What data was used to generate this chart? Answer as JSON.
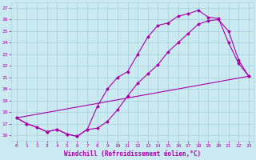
{
  "xlabel": "Windchill (Refroidissement éolien,°C)",
  "background_color": "#cbe9f0",
  "grid_color": "#aad4e0",
  "line_color": "#aa00aa",
  "xlim": [
    -0.5,
    23.5
  ],
  "ylim": [
    15.5,
    27.5
  ],
  "xticks": [
    0,
    1,
    2,
    3,
    4,
    5,
    6,
    7,
    8,
    9,
    10,
    11,
    12,
    13,
    14,
    15,
    16,
    17,
    18,
    19,
    20,
    21,
    22,
    23
  ],
  "yticks": [
    16,
    17,
    18,
    19,
    20,
    21,
    22,
    23,
    24,
    25,
    26,
    27
  ],
  "series1_x": [
    0,
    1,
    2,
    3,
    4,
    5,
    6,
    7,
    8,
    9,
    10,
    11,
    12,
    13,
    14,
    15,
    16,
    17,
    18,
    19,
    20,
    21,
    22,
    23
  ],
  "series1_y": [
    17.5,
    17.0,
    16.7,
    16.3,
    16.5,
    16.1,
    15.9,
    16.5,
    18.5,
    20.0,
    21.0,
    21.5,
    23.0,
    24.5,
    25.5,
    25.7,
    26.3,
    26.5,
    26.8,
    26.2,
    26.1,
    24.0,
    22.2,
    21.1
  ],
  "series2_x": [
    0,
    1,
    2,
    3,
    4,
    5,
    6,
    7,
    8,
    9,
    10,
    11,
    12,
    13,
    14,
    15,
    16,
    17,
    18,
    19,
    20,
    21,
    22,
    23
  ],
  "series2_y": [
    17.5,
    17.0,
    16.7,
    16.3,
    16.5,
    16.1,
    15.9,
    16.5,
    16.6,
    17.2,
    18.2,
    19.4,
    20.5,
    21.3,
    22.1,
    23.2,
    24.0,
    24.8,
    25.6,
    25.9,
    26.0,
    25.0,
    22.5,
    21.1
  ],
  "series3_x": [
    0,
    23
  ],
  "series3_y": [
    17.5,
    21.1
  ]
}
